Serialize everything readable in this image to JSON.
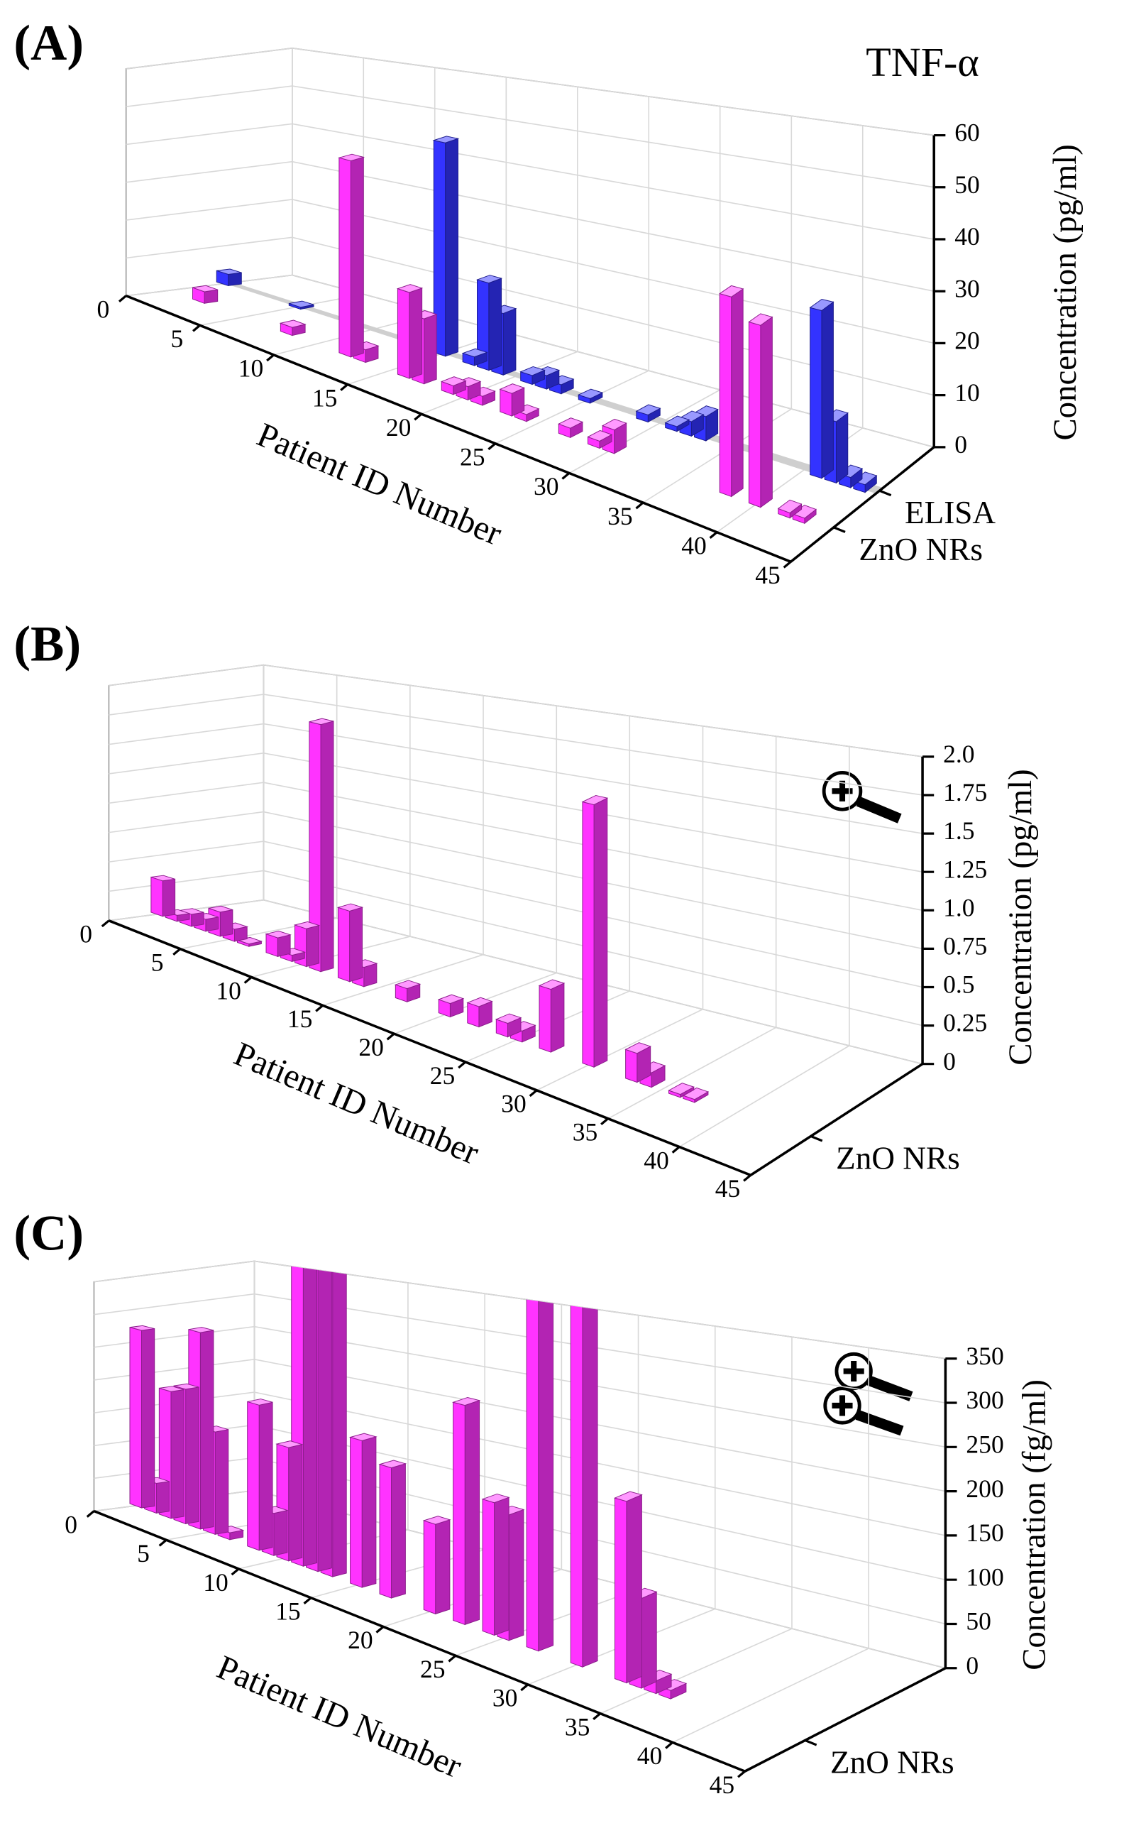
{
  "chart_data": [
    {
      "type": "bar3d",
      "panel_label": "(A)",
      "annotation": "TNF-α",
      "xlabel": "Patient ID Number",
      "ylabel": "Concentration (pg/ml)",
      "xlim": [
        0,
        45
      ],
      "xticks": [
        0,
        5,
        10,
        15,
        20,
        25,
        30,
        35,
        40,
        45
      ],
      "ylim": [
        0,
        60
      ],
      "yticks": [
        0,
        10,
        20,
        30,
        40,
        50,
        60
      ],
      "grid": true,
      "series": [
        {
          "name": "ELISA",
          "color": "#3333ff",
          "x": [
            0,
            5,
            15,
            17,
            18,
            19,
            21,
            22,
            23,
            25,
            29,
            31,
            32,
            33,
            41,
            42,
            43,
            44
          ],
          "values": [
            3,
            0.5,
            50,
            2,
            20,
            14,
            2,
            3,
            2,
            1,
            1.5,
            1,
            3,
            5,
            33,
            12,
            2,
            1.5
          ]
        },
        {
          "name": "ZnO NRs",
          "color": "#ff33ff",
          "x": [
            2,
            8,
            12,
            13,
            16,
            17,
            19,
            20,
            21,
            23,
            24,
            27,
            29,
            30,
            38,
            40,
            42,
            43
          ],
          "values": [
            3,
            2,
            47,
            3,
            20,
            15,
            2,
            3,
            2,
            5,
            1.5,
            2,
            1.5,
            5,
            40,
            36,
            1,
            1
          ]
        }
      ]
    },
    {
      "type": "bar3d",
      "panel_label": "(B)",
      "xlabel": "Patient ID Number",
      "ylabel": "Concentration (pg/ml)",
      "xlim": [
        0,
        45
      ],
      "xticks": [
        0,
        5,
        10,
        15,
        20,
        25,
        30,
        35,
        40,
        45
      ],
      "ylim": [
        0,
        2
      ],
      "yticks": [
        0,
        0.25,
        0.5,
        0.75,
        {
          "value": 1,
          "label": "1.0"
        },
        1.25,
        1.5,
        1.75,
        {
          "value": 2,
          "label": "2.0"
        }
      ],
      "grid": true,
      "series": [
        {
          "name": "ZnO NRs",
          "color": "#ff33ff",
          "x": [
            0,
            1,
            2,
            3,
            4,
            5,
            6,
            8,
            9,
            10,
            11,
            13,
            14,
            17,
            20,
            22,
            24,
            25,
            27,
            30,
            33,
            34,
            36,
            37
          ],
          "values": [
            0.3,
            0.05,
            0.1,
            0.1,
            0.2,
            0.1,
            0.02,
            0.15,
            0.05,
            0.3,
            1.95,
            0.55,
            0.15,
            0.1,
            0.1,
            0.15,
            0.1,
            0.08,
            0.45,
            1.85,
            0.2,
            0.1,
            0.02,
            0.02
          ]
        }
      ]
    },
    {
      "type": "bar3d",
      "panel_label": "(C)",
      "xlabel": "Patient ID Number",
      "ylabel": "Concentration (fg/ml)",
      "xlim": [
        0,
        45
      ],
      "xticks": [
        0,
        5,
        10,
        15,
        20,
        25,
        30,
        35,
        40,
        45
      ],
      "ylim": [
        0,
        350
      ],
      "yticks": [
        0,
        50,
        100,
        150,
        200,
        250,
        300,
        350
      ],
      "grid": true,
      "series": [
        {
          "name": "ZnO NRs",
          "color": "#ff33ff",
          "x": [
            0,
            1,
            2,
            3,
            4,
            5,
            6,
            8,
            9,
            10,
            11,
            12,
            13,
            15,
            17,
            20,
            22,
            24,
            25,
            27,
            30,
            33,
            34,
            35,
            36
          ],
          "values": [
            270,
            45,
            190,
            200,
            290,
            150,
            10,
            208,
            60,
            160,
            500,
            500,
            500,
            200,
            175,
            118,
            285,
            170,
            160,
            480,
            480,
            220,
            108,
            15,
            10
          ]
        }
      ]
    }
  ]
}
